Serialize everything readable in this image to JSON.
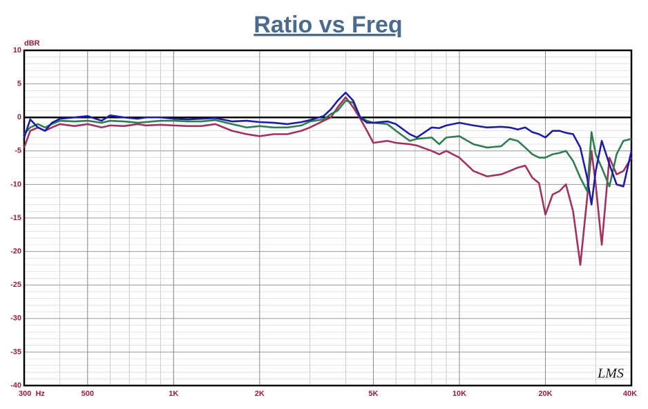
{
  "chart_data": {
    "type": "line",
    "title": "Ratio vs Freq",
    "ylabel": "dBR",
    "annotation": "LMS",
    "log_x": true,
    "grid": true,
    "xlim": [
      300,
      40000
    ],
    "ylim": [
      -40,
      10
    ],
    "xticks": [
      {
        "value": 300,
        "label": "300  Hz"
      },
      500,
      {
        "value": 1000,
        "label": "1K"
      },
      {
        "value": 2000,
        "label": "2K"
      },
      {
        "value": 5000,
        "label": "5K"
      },
      {
        "value": 10000,
        "label": "10K"
      },
      {
        "value": 20000,
        "label": "20K"
      },
      {
        "value": 40000,
        "label": "40K"
      }
    ],
    "yticks": [
      10,
      5,
      0,
      -5,
      -10,
      -15,
      -20,
      -25,
      -30,
      -35,
      -40
    ],
    "x": [
      300,
      315,
      335,
      355,
      375,
      400,
      450,
      500,
      560,
      600,
      670,
      750,
      800,
      900,
      1000,
      1120,
      1250,
      1400,
      1600,
      1800,
      2000,
      2240,
      2500,
      2800,
      3000,
      3350,
      3550,
      3750,
      4000,
      4250,
      4500,
      4750,
      5000,
      5600,
      6000,
      6700,
      7100,
      8000,
      8500,
      9000,
      10000,
      11200,
      12500,
      14000,
      15000,
      16000,
      17000,
      18000,
      19000,
      20000,
      21200,
      22400,
      23600,
      25000,
      26500,
      28000,
      29000,
      30000,
      31500,
      33500,
      35500,
      37500,
      40000
    ],
    "series": [
      {
        "color": "#1c1ca6",
        "values": [
          -3,
          -0.3,
          -1.5,
          -2,
          -0.8,
          -0.2,
          0,
          0.2,
          -0.5,
          0.3,
          0,
          -0.2,
          0,
          0,
          -0.2,
          -0.3,
          -0.2,
          -0.1,
          -0.6,
          -0.5,
          -0.7,
          -0.8,
          -1.0,
          -0.7,
          -0.4,
          0.2,
          1.2,
          2.5,
          3.7,
          2.5,
          0,
          -0.8,
          -0.8,
          -0.6,
          -1.0,
          -2.5,
          -3,
          -1.5,
          -1.6,
          -1.2,
          -0.8,
          -1.2,
          -1.5,
          -1.4,
          -1.5,
          -1.8,
          -1.5,
          -2.2,
          -2.5,
          -3.0,
          -2.0,
          -2.0,
          -2.3,
          -2.5,
          -4.5,
          -9.0,
          -13.0,
          -8.0,
          -3.5,
          -7.0,
          -10.0,
          -10.3,
          -5.0
        ]
      },
      {
        "color": "#2e7d50",
        "values": [
          -2.5,
          -1.5,
          -1,
          -1.5,
          -1,
          -0.5,
          -0.6,
          -0.5,
          -0.8,
          -0.5,
          -0.6,
          -0.8,
          -0.7,
          -0.5,
          -0.5,
          -0.6,
          -0.6,
          -0.4,
          -1.0,
          -1.5,
          -1.3,
          -1.5,
          -1.5,
          -1.2,
          -0.6,
          -0.3,
          0.5,
          1,
          2.5,
          2.2,
          0,
          -0.5,
          -0.8,
          -1.0,
          -2.0,
          -3.5,
          -3.2,
          -3.0,
          -4.0,
          -3.0,
          -2.8,
          -4.0,
          -4.5,
          -4.3,
          -3.2,
          -3.5,
          -4.5,
          -5.5,
          -6.0,
          -6.0,
          -5.5,
          -5.3,
          -5.0,
          -6.5,
          -9.0,
          -11.0,
          -2.2,
          -5.5,
          -7.5,
          -10.3,
          -5.5,
          -3.5,
          -3.2
        ]
      },
      {
        "color": "#a2305c",
        "values": [
          -4.5,
          -2,
          -1.5,
          -2,
          -1.5,
          -1,
          -1.3,
          -1,
          -1.5,
          -1.2,
          -1.3,
          -1.0,
          -1.2,
          -1.1,
          -1.2,
          -1.3,
          -1.3,
          -1.0,
          -2.0,
          -2.5,
          -2.8,
          -2.5,
          -2.5,
          -2.0,
          -1.5,
          -0.5,
          0,
          1.5,
          3.0,
          1.5,
          -0.2,
          -2,
          -3.8,
          -3.5,
          -3.8,
          -4.0,
          -4.2,
          -5.0,
          -5.5,
          -5.0,
          -6.0,
          -8.0,
          -8.8,
          -8.5,
          -8.0,
          -7.5,
          -7.2,
          -9.0,
          -9.8,
          -14.5,
          -11.5,
          -11.0,
          -10.0,
          -14.0,
          -22.0,
          -12.0,
          -5.0,
          -10.0,
          -19.0,
          -6.0,
          -8.5,
          -8.0,
          -6.0
        ]
      }
    ]
  }
}
